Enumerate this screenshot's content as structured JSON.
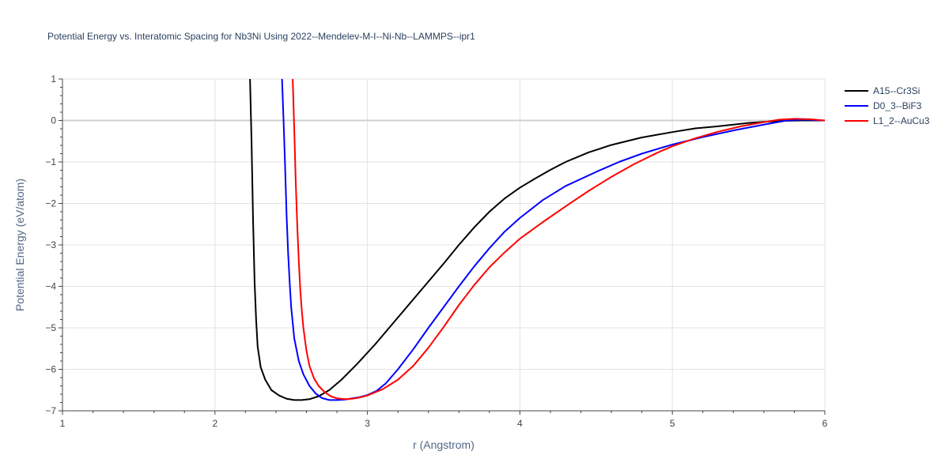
{
  "chart_data": {
    "type": "line",
    "title": "Potential Energy vs. Interatomic Spacing for Nb3Ni Using 2022--Mendelev-M-I--Ni-Nb--LAMMPS--ipr1",
    "xlabel": "r (Angstrom)",
    "ylabel": "Potential Energy (eV/atom)",
    "xlim": [
      1,
      6
    ],
    "ylim": [
      -7,
      1
    ],
    "xticks": [
      1,
      2,
      3,
      4,
      5,
      6
    ],
    "yticks": [
      1,
      0,
      -1,
      -2,
      -3,
      -4,
      -5,
      -6,
      -7
    ],
    "ytick_labels": [
      "1",
      "0",
      "−1",
      "−2",
      "−3",
      "−4",
      "−5",
      "−6",
      "−7"
    ],
    "grid": true,
    "legend_position": "top-right",
    "series": [
      {
        "name": "A15--Cr3Si",
        "color": "#000000",
        "x": [
          2.23,
          2.24,
          2.25,
          2.26,
          2.27,
          2.28,
          2.3,
          2.33,
          2.37,
          2.42,
          2.47,
          2.52,
          2.57,
          2.62,
          2.68,
          2.75,
          2.83,
          2.93,
          3.05,
          3.2,
          3.35,
          3.5,
          3.6,
          3.7,
          3.8,
          3.9,
          4.0,
          4.1,
          4.2,
          4.3,
          4.45,
          4.6,
          4.8,
          5.0,
          5.15,
          5.3,
          5.5,
          5.7,
          5.85,
          6.0
        ],
        "y": [
          1.0,
          -0.5,
          -2.4,
          -3.9,
          -4.8,
          -5.45,
          -5.95,
          -6.25,
          -6.5,
          -6.63,
          -6.71,
          -6.74,
          -6.74,
          -6.72,
          -6.65,
          -6.5,
          -6.25,
          -5.88,
          -5.4,
          -4.75,
          -4.1,
          -3.45,
          -3.0,
          -2.58,
          -2.2,
          -1.88,
          -1.62,
          -1.4,
          -1.19,
          -1.0,
          -0.77,
          -0.59,
          -0.41,
          -0.28,
          -0.19,
          -0.14,
          -0.06,
          -0.01,
          0.0,
          0.0
        ]
      },
      {
        "name": "D0_3--BiF3",
        "color": "#0000ff",
        "x": [
          2.44,
          2.45,
          2.46,
          2.47,
          2.48,
          2.49,
          2.5,
          2.52,
          2.55,
          2.58,
          2.62,
          2.66,
          2.7,
          2.75,
          2.8,
          2.85,
          2.9,
          2.95,
          3.0,
          3.06,
          3.12,
          3.2,
          3.3,
          3.4,
          3.5,
          3.6,
          3.7,
          3.8,
          3.9,
          4.0,
          4.15,
          4.3,
          4.5,
          4.65,
          4.8,
          5.0,
          5.2,
          5.4,
          5.6,
          5.75,
          5.85,
          6.0
        ],
        "y": [
          1.0,
          0.0,
          -1.1,
          -2.3,
          -3.2,
          -3.9,
          -4.5,
          -5.25,
          -5.8,
          -6.12,
          -6.4,
          -6.58,
          -6.69,
          -6.74,
          -6.74,
          -6.73,
          -6.7,
          -6.67,
          -6.62,
          -6.52,
          -6.34,
          -6.0,
          -5.52,
          -5.0,
          -4.5,
          -4.0,
          -3.52,
          -3.08,
          -2.68,
          -2.35,
          -1.92,
          -1.58,
          -1.24,
          -1.0,
          -0.8,
          -0.58,
          -0.4,
          -0.24,
          -0.1,
          0.0,
          0.02,
          0.0
        ]
      },
      {
        "name": "L1_2--AuCu3",
        "color": "#ff0000",
        "x": [
          2.51,
          2.52,
          2.53,
          2.54,
          2.55,
          2.56,
          2.57,
          2.58,
          2.6,
          2.62,
          2.65,
          2.68,
          2.72,
          2.76,
          2.8,
          2.85,
          2.9,
          2.95,
          3.0,
          3.1,
          3.2,
          3.3,
          3.4,
          3.5,
          3.6,
          3.7,
          3.8,
          3.9,
          4.0,
          4.15,
          4.3,
          4.45,
          4.6,
          4.75,
          4.9,
          5.0,
          5.15,
          5.3,
          5.45,
          5.6,
          5.7,
          5.8,
          5.9,
          6.0
        ],
        "y": [
          1.0,
          -0.2,
          -1.5,
          -2.55,
          -3.4,
          -4.1,
          -4.6,
          -5.0,
          -5.55,
          -5.92,
          -6.22,
          -6.4,
          -6.55,
          -6.65,
          -6.7,
          -6.72,
          -6.71,
          -6.68,
          -6.63,
          -6.48,
          -6.25,
          -5.92,
          -5.48,
          -4.98,
          -4.45,
          -3.97,
          -3.54,
          -3.18,
          -2.85,
          -2.45,
          -2.07,
          -1.7,
          -1.36,
          -1.05,
          -0.78,
          -0.62,
          -0.43,
          -0.27,
          -0.14,
          -0.04,
          0.02,
          0.04,
          0.03,
          0.0
        ]
      }
    ]
  }
}
